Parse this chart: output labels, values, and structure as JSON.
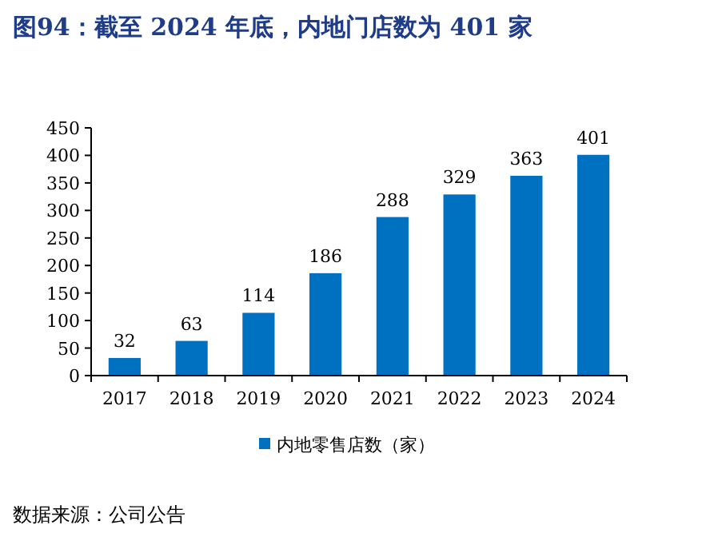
{
  "chart_data": {
    "type": "bar",
    "title": "图94：截至 2024 年底，内地门店数为 401 家",
    "categories": [
      "2017",
      "2018",
      "2019",
      "2020",
      "2021",
      "2022",
      "2023",
      "2024"
    ],
    "series": [
      {
        "name": "内地零售店数（家）",
        "color": "#0070c0",
        "values": [
          32,
          63,
          114,
          186,
          288,
          329,
          363,
          401
        ]
      }
    ],
    "ylim": [
      0,
      450
    ],
    "yticks": [
      0,
      50,
      100,
      150,
      200,
      250,
      300,
      350,
      400,
      450
    ],
    "data_labels": true,
    "legend": "bottom",
    "grid": false,
    "annotations": [
      "数据来源：公司公告"
    ]
  }
}
